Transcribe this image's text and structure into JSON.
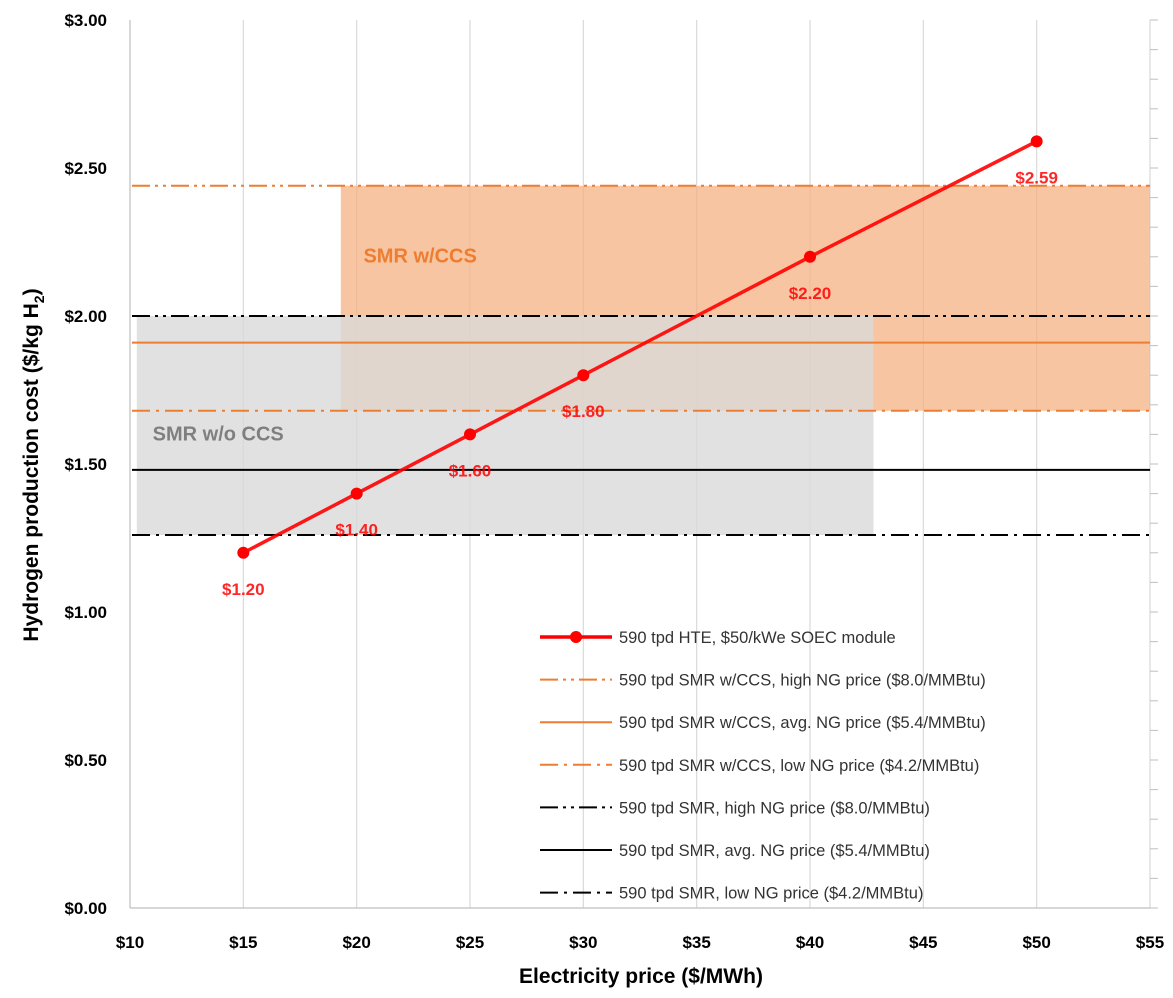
{
  "chart_data": {
    "type": "line",
    "xlabel": "Electricity price ($/MWh)",
    "ylabel_main": "Hydrogen production cost ($/kg H",
    "ylabel_sub": "2",
    "ylabel_close": ")",
    "xlim": [
      10,
      55
    ],
    "ylim": [
      0,
      3
    ],
    "x_ticks": [
      10,
      15,
      20,
      25,
      30,
      35,
      40,
      45,
      50,
      55
    ],
    "x_tick_labels": [
      "$10",
      "$15",
      "$20",
      "$25",
      "$30",
      "$35",
      "$40",
      "$45",
      "$50",
      "$55"
    ],
    "y_ticks": [
      0,
      0.5,
      1.0,
      1.5,
      2.0,
      2.5,
      3.0
    ],
    "y_tick_labels": [
      "$0.00",
      "$0.50",
      "$1.00",
      "$1.50",
      "$2.00",
      "$2.50",
      "$3.00"
    ],
    "grid": "vertical",
    "legend_position": "bottom-right",
    "series": [
      {
        "name": "590 tpd HTE, $50/kWe SOEC module",
        "x": [
          15,
          20,
          25,
          30,
          40,
          50
        ],
        "y": [
          1.2,
          1.4,
          1.6,
          1.8,
          2.2,
          2.59
        ],
        "labels": [
          "$1.20",
          "$1.40",
          "$1.60",
          "$1.80",
          "$2.20",
          "$2.59"
        ],
        "color": "#ff0000"
      }
    ],
    "reference_lines": [
      {
        "name": "590 tpd SMR w/CCS, high NG price ($8.0/MMBtu)",
        "y": 2.44,
        "color": "#ed7d31",
        "dash": "dash-dot-dot"
      },
      {
        "name": "590 tpd SMR w/CCS, avg. NG price ($5.4/MMBtu)",
        "y": 1.91,
        "color": "#ed7d31",
        "dash": "solid"
      },
      {
        "name": "590 tpd SMR w/CCS, low NG price ($4.2/MMBtu)",
        "y": 1.68,
        "color": "#ed7d31",
        "dash": "dash-dot"
      },
      {
        "name": "590 tpd SMR, high NG price ($8.0/MMBtu)",
        "y": 2.0,
        "color": "#000000",
        "dash": "dash-dot-dot"
      },
      {
        "name": "590 tpd SMR, avg. NG price ($5.4/MMBtu)",
        "y": 1.48,
        "color": "#000000",
        "dash": "solid"
      },
      {
        "name": "590 tpd SMR, low NG price ($4.2/MMBtu)",
        "y": 1.26,
        "color": "#000000",
        "dash": "dash-dot"
      }
    ],
    "regions": [
      {
        "label": "SMR w/CCS",
        "x": [
          19.3,
          55
        ],
        "y": [
          1.68,
          2.44
        ],
        "color": "#f4b183",
        "label_color": "#ed7d31"
      },
      {
        "label": "SMR w/o CCS",
        "x": [
          10.3,
          42.8
        ],
        "y": [
          1.26,
          2.0
        ],
        "color": "#d9d9d9",
        "label_color": "#7f7f7f"
      }
    ]
  }
}
